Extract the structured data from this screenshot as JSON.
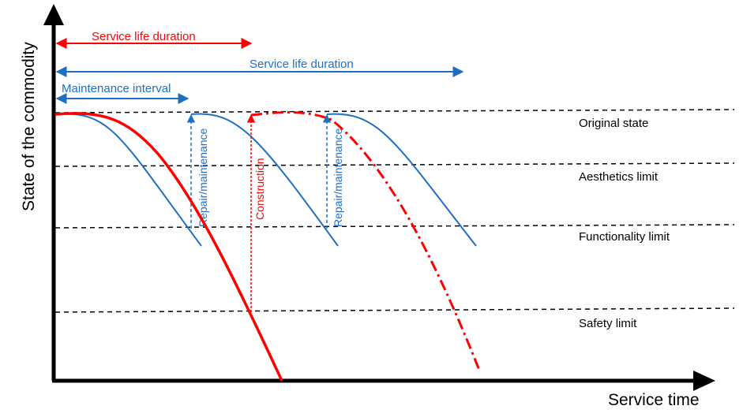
{
  "axes": {
    "y_label": "State of the commodity",
    "x_label": "Service time"
  },
  "levels": [
    {
      "key": "original",
      "label": "Original state"
    },
    {
      "key": "aesthetics",
      "label": "Aesthetics limit"
    },
    {
      "key": "functionality",
      "label": "Functionality limit"
    },
    {
      "key": "safety",
      "label": "Safety limit"
    }
  ],
  "annotations": {
    "red_service_life": "Service life duration",
    "blue_service_life": "Service life duration",
    "maintenance_interval": "Maintenance interval",
    "repair_1": "Repair/maintenance",
    "repair_2": "Repair/maintenance",
    "construction": "Construction"
  },
  "colors": {
    "red": "#ff0000",
    "blue": "#1f6fc0",
    "black": "#000000"
  }
}
